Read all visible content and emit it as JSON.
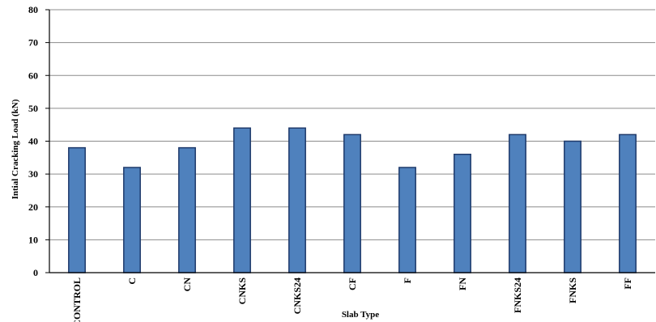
{
  "chart_data": {
    "type": "bar",
    "title": "",
    "xlabel": "Slab Type",
    "ylabel": "Intial Cracking Load (kN)",
    "categories": [
      "CONTROL",
      "C",
      "CN",
      "CNKS",
      "CNKS24",
      "CF",
      "F",
      "FN",
      "FNKS24",
      "FNKS",
      "FF"
    ],
    "values": [
      38,
      32,
      38,
      44,
      44,
      42,
      32,
      36,
      42,
      40,
      42
    ],
    "ylim": [
      0,
      80
    ],
    "yticks": [
      "0",
      "10",
      "20",
      "30",
      "40",
      "50",
      "60",
      "70",
      "80"
    ],
    "grid": true,
    "legend": "none",
    "colors": {
      "bar_fill": "#4f81bd",
      "bar_stroke": "#1f3a6b",
      "grid": "#8c8c8c",
      "axis": "#000000"
    }
  }
}
